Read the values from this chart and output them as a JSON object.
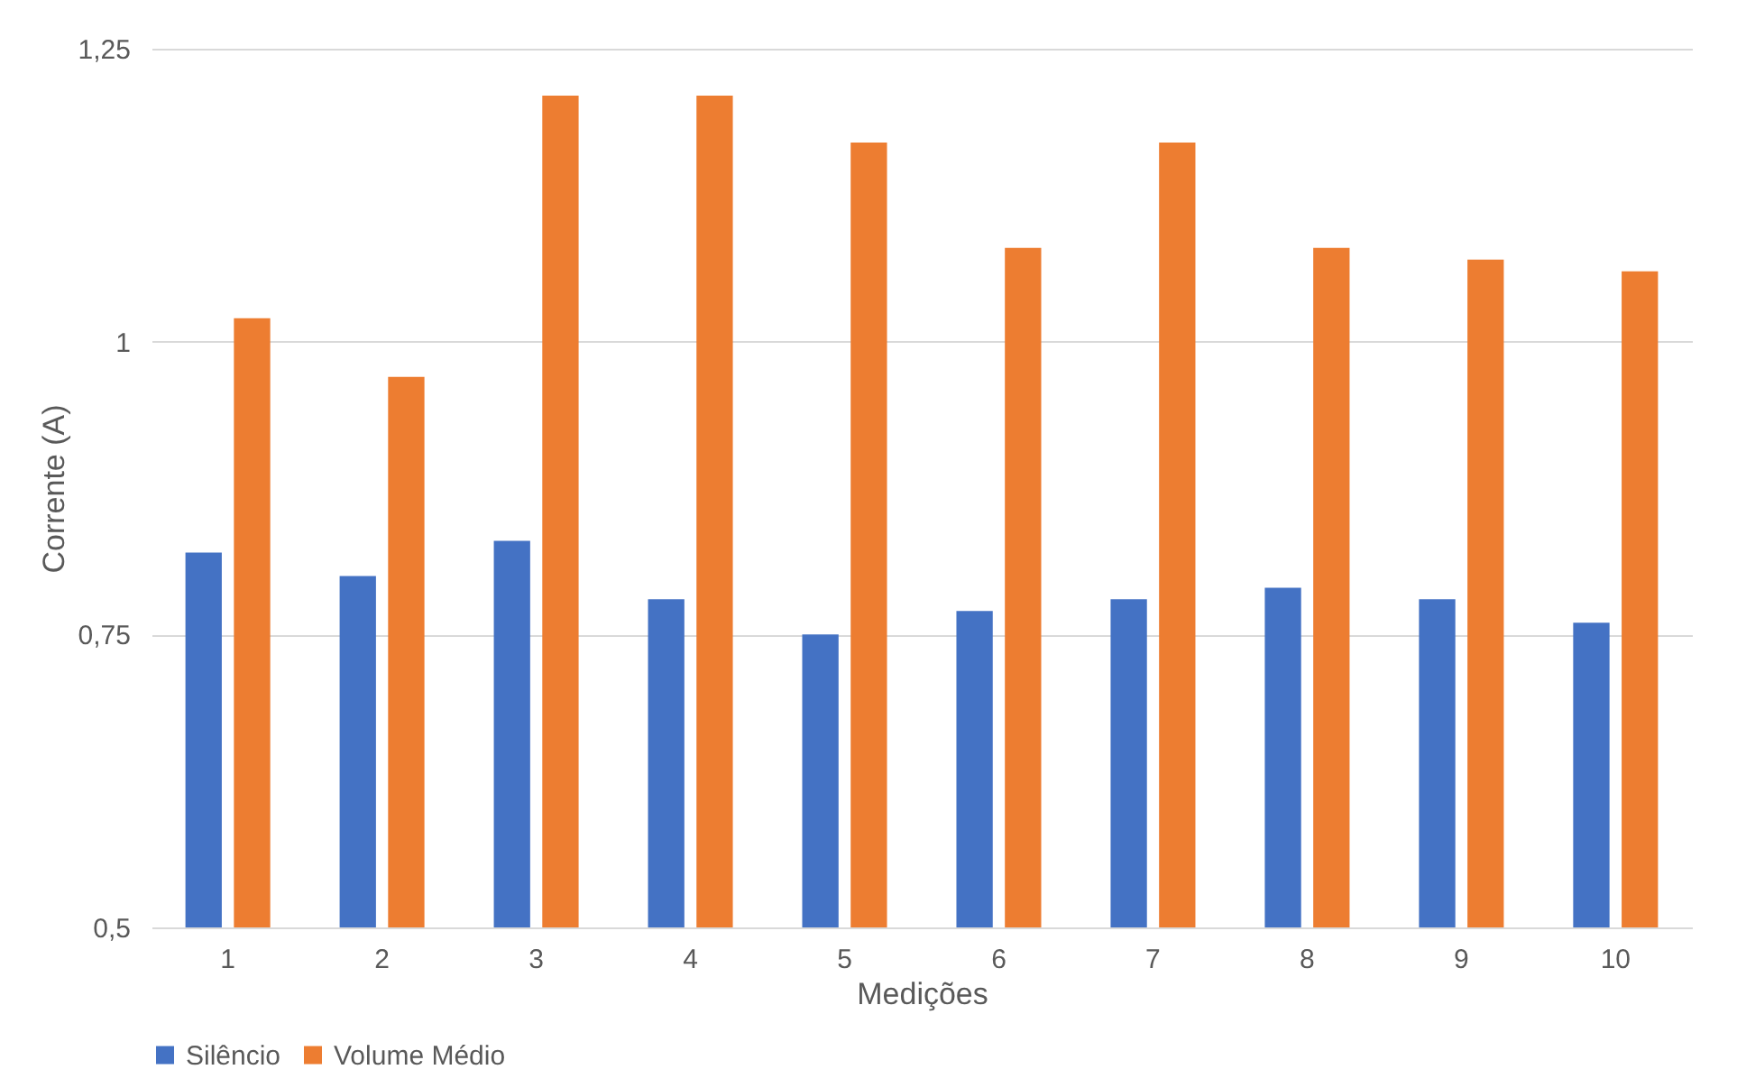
{
  "chart_data": {
    "type": "bar",
    "xlabel": "Medições",
    "ylabel": "Corrente (A)",
    "categories": [
      "1",
      "2",
      "3",
      "4",
      "5",
      "6",
      "7",
      "8",
      "9",
      "10"
    ],
    "series": [
      {
        "name": "Silêncio",
        "color": "#4472c4",
        "values": [
          0.82,
          0.8,
          0.83,
          0.78,
          0.75,
          0.77,
          0.78,
          0.79,
          0.78,
          0.76
        ]
      },
      {
        "name": "Volume Médio",
        "color": "#ed7d31",
        "values": [
          1.02,
          0.97,
          1.21,
          1.21,
          1.17,
          1.08,
          1.17,
          1.08,
          1.07,
          1.06
        ]
      }
    ],
    "ylim": [
      0.5,
      1.25
    ],
    "yticks": [
      {
        "value": 0.5,
        "label": "0,5"
      },
      {
        "value": 0.75,
        "label": "0,75"
      },
      {
        "value": 1,
        "label": "1"
      },
      {
        "value": 1.25,
        "label": "1,25"
      }
    ],
    "grid": "y",
    "legend": "bottom"
  }
}
